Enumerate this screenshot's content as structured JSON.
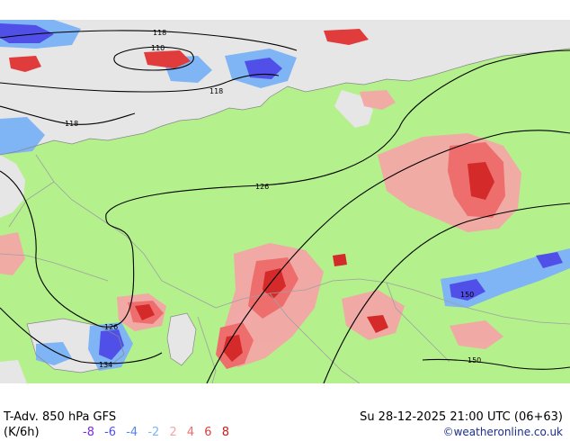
{
  "footer": {
    "title": "T-Adv. 850 hPa   GFS",
    "units": "(K/6h)",
    "datetime": "Su 28-12-2025 21:00 UTC (06+63)",
    "credit": "©weatheronline.co.uk"
  },
  "legend": {
    "items": [
      {
        "label": "-8",
        "color": "#7a2de0"
      },
      {
        "label": "-6",
        "color": "#5050e8"
      },
      {
        "label": "-4",
        "color": "#5a82f0"
      },
      {
        "label": "-2",
        "color": "#7fb4f5"
      },
      {
        "label": "2",
        "color": "#f4a6a6"
      },
      {
        "label": "4",
        "color": "#ee6e6e"
      },
      {
        "label": "6",
        "color": "#e03c3c"
      },
      {
        "label": "8",
        "color": "#c81e1e"
      }
    ]
  },
  "contours": {
    "labels": [
      "118",
      "110",
      "118",
      "118",
      "126",
      "126",
      "134",
      "150",
      "150"
    ]
  },
  "colors": {
    "land": "#b4f08c",
    "sea": "#e6e6e6",
    "border": "#a0a0a0",
    "contour": "#000000"
  }
}
